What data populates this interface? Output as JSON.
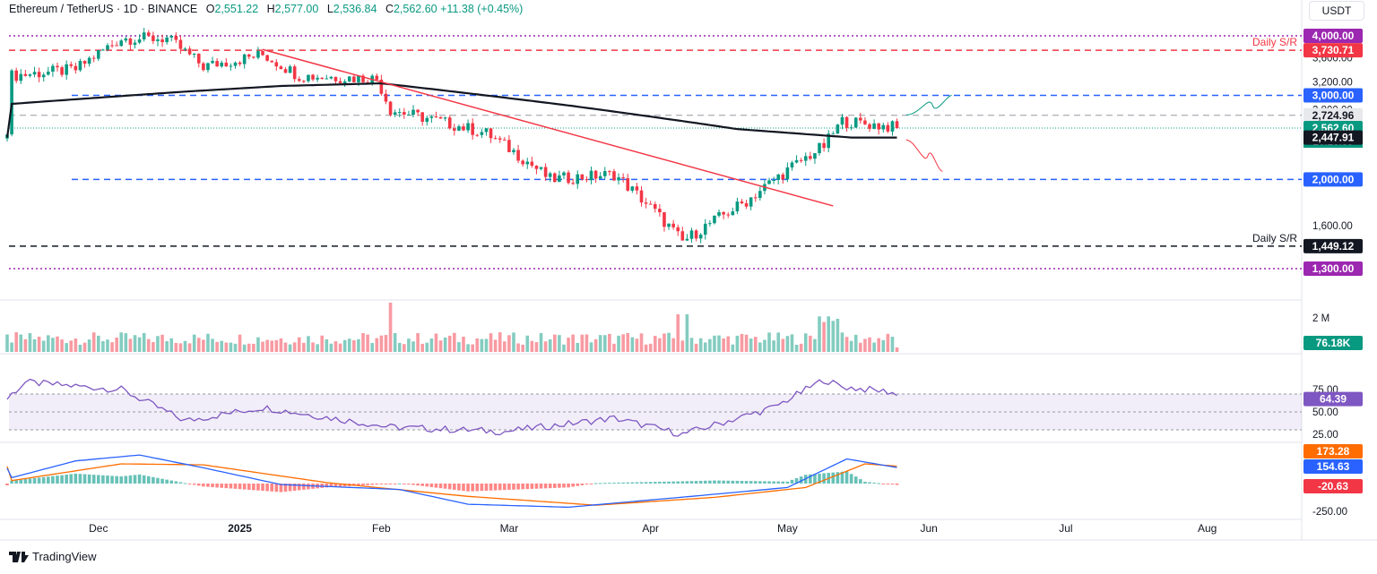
{
  "header": {
    "symbol": "Ethereum / TetherUS · 1D · BINANCE",
    "o_label": "O",
    "o": "2,551.22",
    "h_label": "H",
    "h": "2,577.00",
    "l_label": "L",
    "l": "2,536.84",
    "c_label": "C",
    "c": "2,562.60",
    "change": "+11.38 (+0.45%)"
  },
  "currency_label": "USDT",
  "branding": "TradingView",
  "colors": {
    "up": "#089981",
    "down": "#f23645",
    "ma": "#131722",
    "blue_level": "#2962ff",
    "red_level": "#f23645",
    "purple_level": "#9c27b0",
    "rsi": "#7e57c2",
    "macd": "#2962ff",
    "signal": "#ff6d00"
  },
  "chart_data": [
    {
      "type": "candlestick",
      "title": "Ethereum / TetherUS · 1D · BINANCE",
      "x_ticks": [
        "Dec",
        "2025",
        "Feb",
        "Mar",
        "Apr",
        "May",
        "Jun",
        "Jul",
        "Aug"
      ],
      "y_ticks": [
        "3,600.00",
        "3,200.00",
        "2,800.00",
        "1,600.00",
        "1,300.00"
      ],
      "ylim": [
        1250,
        4150
      ],
      "sampled_closes": [
        {
          "date": "2024-11-12",
          "close": 3300
        },
        {
          "date": "2024-11-26",
          "close": 3400
        },
        {
          "date": "2024-12-06",
          "close": 3950
        },
        {
          "date": "2024-12-16",
          "close": 3950
        },
        {
          "date": "2024-12-24",
          "close": 3450
        },
        {
          "date": "2025-01-06",
          "close": 3650
        },
        {
          "date": "2025-01-14",
          "close": 3300
        },
        {
          "date": "2025-01-31",
          "close": 3250
        },
        {
          "date": "2025-02-03",
          "close": 2800
        },
        {
          "date": "2025-02-24",
          "close": 2500
        },
        {
          "date": "2025-03-10",
          "close": 2000
        },
        {
          "date": "2025-03-24",
          "close": 2050
        },
        {
          "date": "2025-04-08",
          "close": 1480
        },
        {
          "date": "2025-04-22",
          "close": 1800
        },
        {
          "date": "2025-05-09",
          "close": 2350
        },
        {
          "date": "2025-05-13",
          "close": 2650
        },
        {
          "date": "2025-05-26",
          "close": 2562.6
        }
      ],
      "moving_average_200": [
        {
          "date": "2024-11-12",
          "value": 2880
        },
        {
          "date": "2024-12-21",
          "value": 3060
        },
        {
          "date": "2025-01-10",
          "value": 3140
        },
        {
          "date": "2025-02-01",
          "value": 3180
        },
        {
          "date": "2025-03-15",
          "value": 2850
        },
        {
          "date": "2025-04-20",
          "value": 2550
        },
        {
          "date": "2025-05-15",
          "value": 2447.91
        },
        {
          "date": "2025-05-26",
          "value": 2447.91
        }
      ],
      "trendline": [
        {
          "date": "2025-01-06",
          "value": 3745
        },
        {
          "date": "2025-05-11",
          "value": 1760
        }
      ],
      "levels": [
        {
          "value": 4000,
          "label": "4,000.00",
          "style": "dotted",
          "color": "#9c27b0"
        },
        {
          "value": 3730.71,
          "label": "3,730.71",
          "style": "dashed",
          "color": "#f23645",
          "annotation": "Daily S/R"
        },
        {
          "value": 3000,
          "label": "3,000.00",
          "style": "dashed",
          "color": "#2962ff"
        },
        {
          "value": 2724.96,
          "label": "2,724.96",
          "style": "dashed",
          "color": "#9598a1"
        },
        {
          "value": 2000,
          "label": "2,000.00",
          "style": "dashed",
          "color": "#2962ff"
        },
        {
          "value": 1449.12,
          "label": "1,449.12",
          "style": "dashed",
          "color": "#131722",
          "annotation": "Daily S/R"
        },
        {
          "value": 1300,
          "label": "1,300.00",
          "style": "dotted",
          "color": "#9c27b0"
        }
      ],
      "last_price": {
        "value": 2562.6,
        "label": "2,562.60",
        "countdown": "20:16:39"
      },
      "ma_label": "2,447.91",
      "projections": [
        {
          "name": "bullish",
          "color": "#089981",
          "points": [
            {
              "date": "2025-05-27",
              "value": 2730
            },
            {
              "date": "2025-06-06",
              "value": 3000
            }
          ]
        },
        {
          "name": "bearish",
          "color": "#f23645",
          "points": [
            {
              "date": "2025-05-27",
              "value": 2420
            },
            {
              "date": "2025-06-04",
              "value": 2080
            }
          ]
        }
      ]
    },
    {
      "type": "bar",
      "title": "Volume",
      "y_ticks": [
        "2 M"
      ],
      "last_value_label": "76.18K",
      "peak_value_approx": 2000000
    },
    {
      "type": "line",
      "title": "RSI",
      "ylim": [
        20,
        100
      ],
      "y_ticks": [
        "75.00",
        "50.00",
        "25.00"
      ],
      "bands": [
        30,
        70
      ],
      "last_value_label": "64.39",
      "points": [
        {
          "date": "2024-11-12",
          "value": 70
        },
        {
          "date": "2024-11-15",
          "value": 83
        },
        {
          "date": "2024-12-06",
          "value": 75
        },
        {
          "date": "2024-12-20",
          "value": 40
        },
        {
          "date": "2025-01-06",
          "value": 55
        },
        {
          "date": "2025-02-03",
          "value": 33
        },
        {
          "date": "2025-02-28",
          "value": 28
        },
        {
          "date": "2025-03-24",
          "value": 43
        },
        {
          "date": "2025-04-08",
          "value": 25
        },
        {
          "date": "2025-04-28",
          "value": 55
        },
        {
          "date": "2025-05-09",
          "value": 86
        },
        {
          "date": "2025-05-13",
          "value": 78
        },
        {
          "date": "2025-05-24",
          "value": 72
        },
        {
          "date": "2025-05-26",
          "value": 64.39
        }
      ]
    },
    {
      "type": "line",
      "title": "MACD",
      "y_ticks": [
        "-20.63",
        "-250.00"
      ],
      "macd_last_label": "154.63",
      "signal_last_label": "173.28",
      "histogram_last_label": "-20.63",
      "macd_points": [
        {
          "date": "2024-11-12",
          "value": 60
        },
        {
          "date": "2024-11-26",
          "value": 230
        },
        {
          "date": "2024-12-10",
          "value": 290
        },
        {
          "date": "2024-12-24",
          "value": 160
        },
        {
          "date": "2025-01-10",
          "value": -10
        },
        {
          "date": "2025-02-05",
          "value": -60
        },
        {
          "date": "2025-02-20",
          "value": -210
        },
        {
          "date": "2025-03-14",
          "value": -240
        },
        {
          "date": "2025-04-10",
          "value": -130
        },
        {
          "date": "2025-05-01",
          "value": -40
        },
        {
          "date": "2025-05-14",
          "value": 250
        },
        {
          "date": "2025-05-26",
          "value": 154.63
        }
      ],
      "signal_points": [
        {
          "date": "2024-11-12",
          "value": 30
        },
        {
          "date": "2024-12-06",
          "value": 200
        },
        {
          "date": "2024-12-24",
          "value": 190
        },
        {
          "date": "2025-01-20",
          "value": 10
        },
        {
          "date": "2025-02-20",
          "value": -130
        },
        {
          "date": "2025-03-20",
          "value": -220
        },
        {
          "date": "2025-04-15",
          "value": -140
        },
        {
          "date": "2025-05-05",
          "value": -40
        },
        {
          "date": "2025-05-18",
          "value": 200
        },
        {
          "date": "2025-05-26",
          "value": 173.28
        }
      ]
    }
  ]
}
